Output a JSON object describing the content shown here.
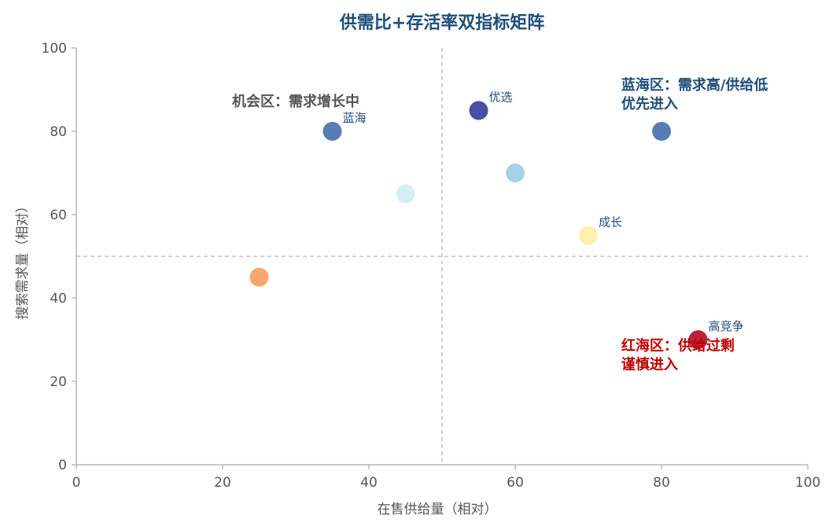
{
  "chart_data": {
    "type": "scatter",
    "title": "供需比+存活率双指标矩阵",
    "xlabel": "在售供给量（相对）",
    "ylabel": "搜索需求量（相对）",
    "xlim": [
      0,
      100
    ],
    "ylim": [
      0,
      100
    ],
    "xticks": [
      "0",
      "20",
      "40",
      "60",
      "80",
      "100"
    ],
    "yticks": [
      "0",
      "20",
      "40",
      "60",
      "80",
      "100"
    ],
    "grid": false,
    "reference_lines": {
      "x": 50,
      "y": 50
    },
    "points": [
      {
        "x": 35,
        "y": 80,
        "color": "#4a72b0",
        "label": "蓝海"
      },
      {
        "x": 55,
        "y": 85,
        "color": "#3b3f9e",
        "label": "优选"
      },
      {
        "x": 60,
        "y": 70,
        "color": "#9ecfe2",
        "label": ""
      },
      {
        "x": 45,
        "y": 65,
        "color": "#d4ebf4",
        "label": ""
      },
      {
        "x": 80,
        "y": 80,
        "color": "#4a72b0",
        "label": ""
      },
      {
        "x": 70,
        "y": 55,
        "color": "#fdf0a8",
        "label": "成长"
      },
      {
        "x": 25,
        "y": 45,
        "color": "#f89f63",
        "label": ""
      },
      {
        "x": 85,
        "y": 30,
        "color": "#b0102a",
        "label": "高竞争"
      }
    ],
    "annotations": [
      {
        "key": "opportunity",
        "lines": [
          "机会区：需求增长中"
        ],
        "x": 30,
        "y": 86,
        "color": "#555555",
        "bold": false
      },
      {
        "key": "blue_ocean",
        "lines": [
          "蓝海区：需求高/供给低",
          "优先进入"
        ],
        "x": 74.5,
        "y": 90,
        "color": "#1f4e79",
        "bold": true
      },
      {
        "key": "red_ocean",
        "lines": [
          "红海区：供给过剩",
          "谨慎进入"
        ],
        "x": 74.5,
        "y": 27.5,
        "color": "#c00000",
        "bold": true
      }
    ]
  }
}
